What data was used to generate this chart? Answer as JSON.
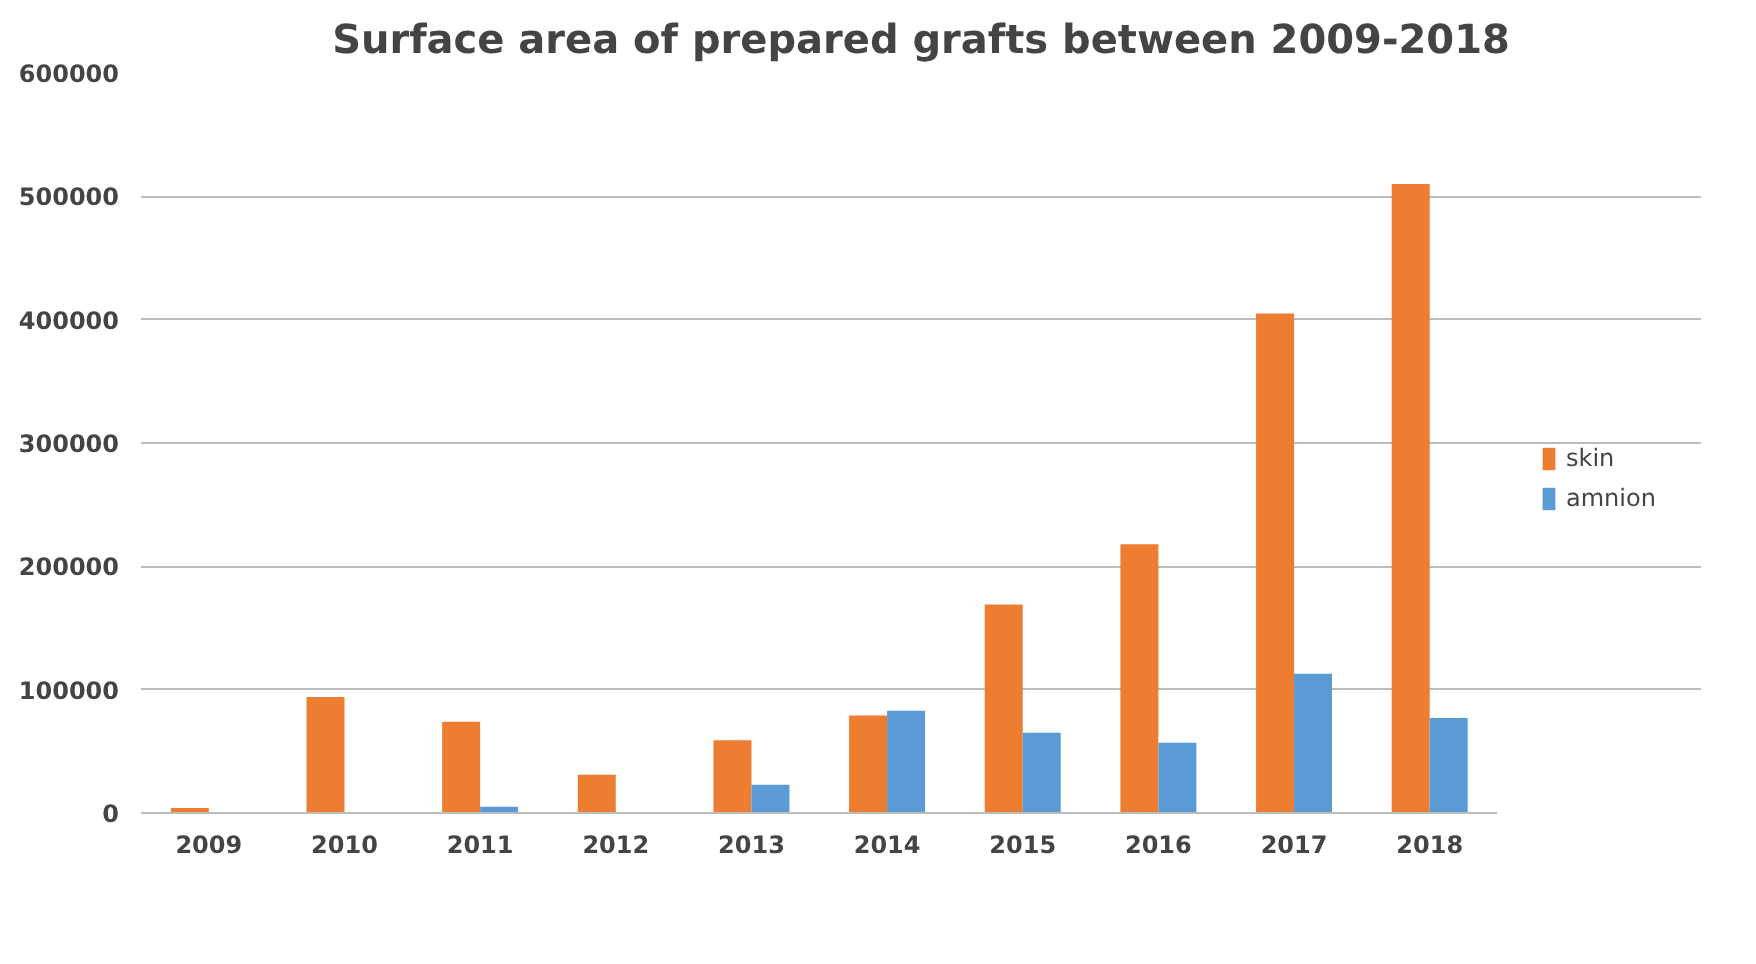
{
  "chart_data": {
    "type": "bar",
    "title": "Surface area of prepared grafts between 2009-2018",
    "categories": [
      "2009",
      "2010",
      "2011",
      "2012",
      "2013",
      "2014",
      "2015",
      "2016",
      "2017",
      "2018"
    ],
    "series": [
      {
        "name": "skin",
        "color": "#ed7d31",
        "values": [
          4000,
          94000,
          74000,
          31000,
          59000,
          79000,
          169000,
          218000,
          405000,
          510000
        ]
      },
      {
        "name": "amnion",
        "color": "#5b9bd5",
        "values": [
          0,
          0,
          5000,
          0,
          23000,
          83000,
          65000,
          57000,
          113000,
          77000
        ]
      }
    ],
    "ylim": [
      0,
      600000
    ],
    "yticks": [
      0,
      100000,
      200000,
      300000,
      400000,
      500000,
      600000
    ],
    "grid": "y",
    "legend": "right"
  }
}
